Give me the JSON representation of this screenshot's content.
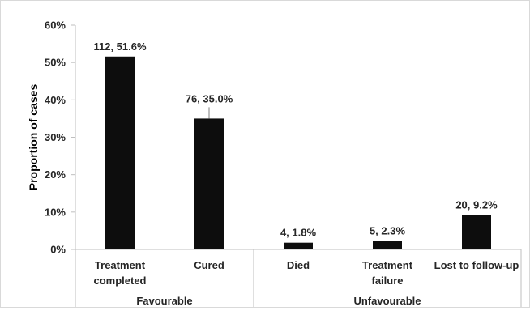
{
  "chart_data": {
    "type": "bar",
    "ylabel": "Proportion of cases",
    "ylim": [
      0,
      60
    ],
    "yticks": [
      0,
      10,
      20,
      30,
      40,
      50,
      60
    ],
    "ytick_labels": [
      "0%",
      "10%",
      "20%",
      "30%",
      "40%",
      "50%",
      "60%"
    ],
    "grid": false,
    "legend": "none",
    "bar_color": "#0d0d0d",
    "categories": [
      {
        "lines": [
          "Treatment",
          "completed"
        ],
        "count": 112,
        "percent": 51.6,
        "group": "Favourable",
        "label": "112, 51.6%"
      },
      {
        "lines": [
          "Cured"
        ],
        "count": 76,
        "percent": 35.0,
        "group": "Favourable",
        "label": "76, 35.0%"
      },
      {
        "lines": [
          "Died"
        ],
        "count": 4,
        "percent": 1.8,
        "group": "Unfavourable",
        "label": "4, 1.8%"
      },
      {
        "lines": [
          "Treatment",
          "failure"
        ],
        "count": 5,
        "percent": 2.3,
        "group": "Unfavourable",
        "label": "5, 2.3%"
      },
      {
        "lines": [
          "Lost to follow-up"
        ],
        "count": 20,
        "percent": 9.2,
        "group": "Unfavourable",
        "label": "20, 9.2%"
      }
    ],
    "groups": [
      {
        "name": "Favourable",
        "size": 2
      },
      {
        "name": "Unfavourable",
        "size": 3
      }
    ]
  }
}
